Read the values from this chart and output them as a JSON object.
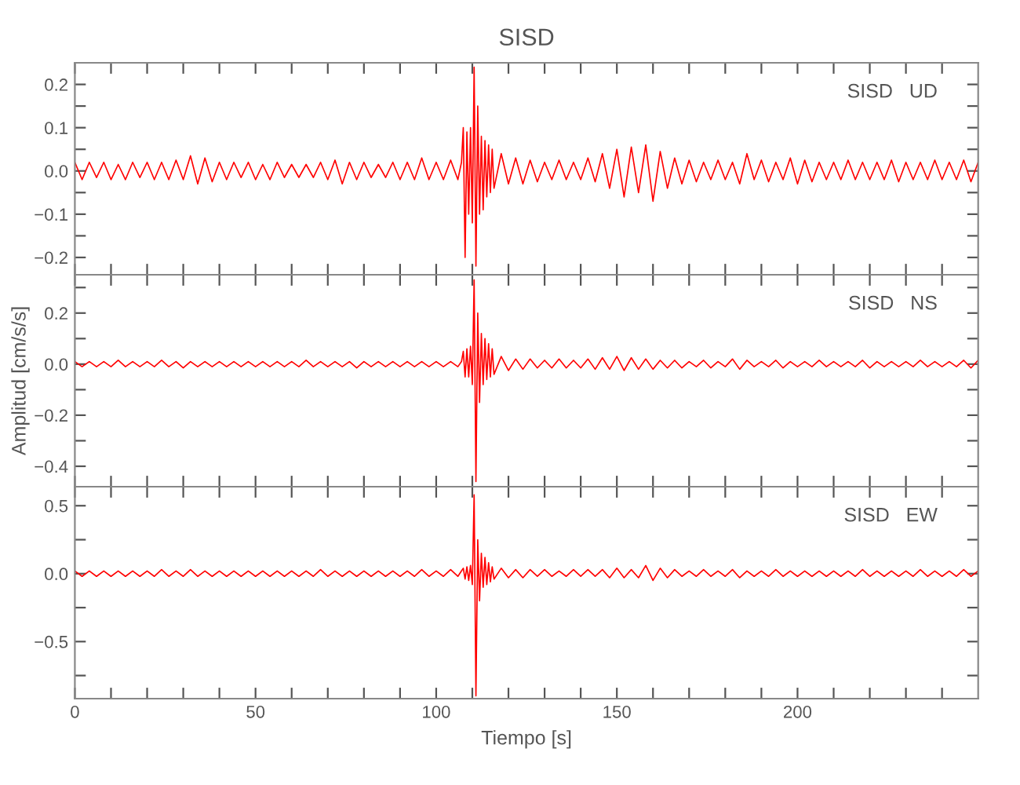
{
  "chart_data": [
    {
      "type": "line",
      "title": "SISD",
      "annotations": [
        "SISD   UD"
      ],
      "tick_labels": "y",
      "xlim": [
        0,
        250
      ],
      "xticks": [
        0,
        {
          "value": 10,
          "label": null
        },
        {
          "value": 20,
          "label": null
        },
        {
          "value": 30,
          "label": null
        },
        {
          "value": 40,
          "label": null
        },
        50,
        {
          "value": 60,
          "label": null
        },
        {
          "value": 70,
          "label": null
        },
        {
          "value": 80,
          "label": null
        },
        {
          "value": 90,
          "label": null
        },
        100,
        {
          "value": 110,
          "label": null
        },
        {
          "value": 120,
          "label": null
        },
        {
          "value": 130,
          "label": null
        },
        {
          "value": 140,
          "label": null
        },
        150,
        {
          "value": 160,
          "label": null
        },
        {
          "value": 170,
          "label": null
        },
        {
          "value": 180,
          "label": null
        },
        {
          "value": 190,
          "label": null
        },
        200,
        {
          "value": 210,
          "label": null
        },
        {
          "value": 220,
          "label": null
        },
        {
          "value": 230,
          "label": null
        },
        {
          "value": 240,
          "label": null
        }
      ],
      "ylim": [
        -0.24,
        0.25
      ],
      "yticks": [
        {
          "value": -0.2,
          "label": "−0.2"
        },
        {
          "value": -0.15,
          "label": null
        },
        {
          "value": -0.1,
          "label": "−0.1"
        },
        {
          "value": -0.05,
          "label": null
        },
        {
          "value": 0,
          "label": "0.0"
        },
        {
          "value": 0.05,
          "label": null
        },
        0.1,
        {
          "value": 0.15,
          "label": null
        },
        0.2
      ],
      "x": [
        0,
        2,
        4,
        6,
        8,
        10,
        12,
        14,
        16,
        18,
        20,
        22,
        24,
        26,
        28,
        30,
        32,
        34,
        36,
        38,
        40,
        42,
        44,
        46,
        48,
        50,
        52,
        54,
        56,
        58,
        60,
        62,
        64,
        66,
        68,
        70,
        72,
        74,
        76,
        78,
        80,
        82,
        84,
        86,
        88,
        90,
        92,
        94,
        96,
        98,
        100,
        102,
        104,
        106,
        107,
        107.5,
        108,
        108.5,
        109,
        109.5,
        110,
        110.5,
        111,
        111.5,
        112,
        112.5,
        113,
        113.5,
        114,
        114.5,
        115,
        115.5,
        116,
        118,
        120,
        122,
        124,
        126,
        128,
        130,
        132,
        134,
        136,
        138,
        140,
        142,
        144,
        146,
        148,
        150,
        152,
        154,
        156,
        158,
        160,
        162,
        164,
        166,
        168,
        170,
        172,
        174,
        176,
        178,
        180,
        182,
        184,
        186,
        188,
        190,
        192,
        194,
        196,
        198,
        200,
        202,
        204,
        206,
        208,
        210,
        212,
        214,
        216,
        218,
        220,
        222,
        224,
        226,
        228,
        230,
        232,
        234,
        236,
        238,
        240,
        242,
        244,
        246,
        248,
        250
      ],
      "series": [
        {
          "color": "#ff0000",
          "values": [
            0.02,
            -0.02,
            0.02,
            -0.015,
            0.02,
            -0.02,
            0.015,
            -0.02,
            0.02,
            -0.015,
            0.02,
            -0.02,
            0.02,
            -0.02,
            0.025,
            -0.02,
            0.035,
            -0.03,
            0.03,
            -0.025,
            0.02,
            -0.02,
            0.02,
            -0.015,
            0.02,
            -0.02,
            0.015,
            -0.02,
            0.02,
            -0.015,
            0.015,
            -0.015,
            0.015,
            -0.015,
            0.02,
            -0.02,
            0.025,
            -0.03,
            0.02,
            -0.02,
            0.02,
            -0.015,
            0.015,
            -0.015,
            0.02,
            -0.02,
            0.02,
            -0.02,
            0.03,
            -0.02,
            0.02,
            -0.02,
            0.025,
            -0.02,
            0.02,
            0.1,
            -0.2,
            0.09,
            -0.1,
            0.1,
            -0.12,
            0.24,
            -0.22,
            0.15,
            -0.1,
            0.08,
            -0.09,
            0.07,
            -0.06,
            0.06,
            -0.05,
            0.05,
            -0.04,
            0.04,
            -0.03,
            0.03,
            -0.03,
            0.025,
            -0.025,
            0.02,
            -0.02,
            0.025,
            -0.02,
            0.02,
            -0.02,
            0.03,
            -0.025,
            0.04,
            -0.04,
            0.05,
            -0.06,
            0.055,
            -0.05,
            0.06,
            -0.07,
            0.045,
            -0.04,
            0.03,
            -0.03,
            0.025,
            -0.025,
            0.02,
            -0.02,
            0.025,
            -0.02,
            0.02,
            -0.03,
            0.04,
            -0.02,
            0.025,
            -0.025,
            0.02,
            -0.02,
            0.03,
            -0.03,
            0.025,
            -0.025,
            0.02,
            -0.02,
            0.02,
            -0.02,
            0.025,
            -0.02,
            0.02,
            -0.02,
            0.02,
            -0.02,
            0.025,
            -0.025,
            0.02,
            -0.02,
            0.02,
            -0.02,
            0.025,
            -0.02,
            0.02,
            -0.02,
            0.025,
            -0.025,
            0.02
          ]
        }
      ]
    },
    {
      "type": "line",
      "ylabel": "Amplitud [cm/s/s]",
      "annotations": [
        "SISD   NS"
      ],
      "tick_labels": "y",
      "xlim": [
        0,
        250
      ],
      "xticks": [
        0,
        {
          "value": 10,
          "label": null
        },
        {
          "value": 20,
          "label": null
        },
        {
          "value": 30,
          "label": null
        },
        {
          "value": 40,
          "label": null
        },
        50,
        {
          "value": 60,
          "label": null
        },
        {
          "value": 70,
          "label": null
        },
        {
          "value": 80,
          "label": null
        },
        {
          "value": 90,
          "label": null
        },
        100,
        {
          "value": 110,
          "label": null
        },
        {
          "value": 120,
          "label": null
        },
        {
          "value": 130,
          "label": null
        },
        {
          "value": 140,
          "label": null
        },
        150,
        {
          "value": 160,
          "label": null
        },
        {
          "value": 170,
          "label": null
        },
        {
          "value": 180,
          "label": null
        },
        {
          "value": 190,
          "label": null
        },
        200,
        {
          "value": 210,
          "label": null
        },
        {
          "value": 220,
          "label": null
        },
        {
          "value": 230,
          "label": null
        },
        {
          "value": 240,
          "label": null
        }
      ],
      "ylim": [
        -0.48,
        0.35
      ],
      "yticks": [
        {
          "value": -0.4,
          "label": "−0.4"
        },
        {
          "value": -0.3,
          "label": null
        },
        {
          "value": -0.2,
          "label": "−0.2"
        },
        {
          "value": -0.1,
          "label": null
        },
        {
          "value": 0,
          "label": "0.0"
        },
        {
          "value": 0.1,
          "label": null
        },
        0.2,
        {
          "value": 0.3,
          "label": null
        }
      ],
      "x": [
        0,
        2,
        4,
        6,
        8,
        10,
        12,
        14,
        16,
        18,
        20,
        22,
        24,
        26,
        28,
        30,
        32,
        34,
        36,
        38,
        40,
        42,
        44,
        46,
        48,
        50,
        52,
        54,
        56,
        58,
        60,
        62,
        64,
        66,
        68,
        70,
        72,
        74,
        76,
        78,
        80,
        82,
        84,
        86,
        88,
        90,
        92,
        94,
        96,
        98,
        100,
        102,
        104,
        106,
        107,
        107.5,
        108,
        108.5,
        109,
        109.5,
        110,
        110.5,
        111,
        111.5,
        112,
        112.5,
        113,
        113.5,
        114,
        114.5,
        115,
        115.5,
        116,
        118,
        120,
        122,
        124,
        126,
        128,
        130,
        132,
        134,
        136,
        138,
        140,
        142,
        144,
        146,
        148,
        150,
        152,
        154,
        156,
        158,
        160,
        162,
        164,
        166,
        168,
        170,
        172,
        174,
        176,
        178,
        180,
        182,
        184,
        186,
        188,
        190,
        192,
        194,
        196,
        198,
        200,
        202,
        204,
        206,
        208,
        210,
        212,
        214,
        216,
        218,
        220,
        222,
        224,
        226,
        228,
        230,
        232,
        234,
        236,
        238,
        240,
        242,
        244,
        246,
        248,
        250
      ],
      "series": [
        {
          "color": "#ff0000",
          "values": [
            0.01,
            -0.01,
            0.01,
            -0.01,
            0.01,
            -0.01,
            0.015,
            -0.01,
            0.01,
            -0.01,
            0.01,
            -0.01,
            0.015,
            -0.01,
            0.01,
            -0.015,
            0.01,
            -0.01,
            0.01,
            -0.01,
            0.01,
            -0.01,
            0.01,
            -0.01,
            0.01,
            -0.01,
            0.01,
            -0.01,
            0.01,
            -0.01,
            0.01,
            -0.01,
            0.015,
            -0.01,
            0.01,
            -0.01,
            0.01,
            -0.01,
            0.01,
            -0.015,
            0.01,
            -0.01,
            0.01,
            -0.01,
            0.01,
            -0.01,
            0.01,
            -0.01,
            0.01,
            -0.01,
            0.01,
            -0.01,
            0.01,
            -0.01,
            0.01,
            0.05,
            -0.05,
            0.06,
            -0.05,
            0.07,
            -0.08,
            0.33,
            -0.46,
            0.2,
            -0.15,
            0.12,
            -0.08,
            0.1,
            -0.06,
            0.08,
            -0.05,
            0.06,
            -0.04,
            0.03,
            -0.025,
            0.02,
            -0.02,
            0.02,
            -0.015,
            0.015,
            -0.015,
            0.02,
            -0.015,
            0.015,
            -0.015,
            0.02,
            -0.02,
            0.025,
            -0.02,
            0.03,
            -0.025,
            0.025,
            -0.02,
            0.02,
            -0.02,
            0.015,
            -0.015,
            0.015,
            -0.015,
            0.01,
            -0.01,
            0.015,
            -0.015,
            0.01,
            -0.01,
            0.02,
            -0.02,
            0.015,
            -0.01,
            0.01,
            -0.01,
            0.015,
            -0.015,
            0.01,
            -0.01,
            0.01,
            -0.01,
            0.015,
            -0.01,
            0.01,
            -0.01,
            0.01,
            -0.01,
            0.015,
            -0.015,
            0.01,
            -0.01,
            0.01,
            -0.01,
            0.01,
            -0.01,
            0.015,
            -0.01,
            0.01,
            -0.01,
            0.01,
            -0.01,
            0.015,
            -0.015,
            0.015
          ]
        }
      ]
    },
    {
      "type": "line",
      "xlabel": "Tiempo [s]",
      "annotations": [
        "SISD   EW"
      ],
      "xlim": [
        0,
        250
      ],
      "xticks": [
        0,
        {
          "value": 10,
          "label": null
        },
        {
          "value": 20,
          "label": null
        },
        {
          "value": 30,
          "label": null
        },
        {
          "value": 40,
          "label": null
        },
        50,
        {
          "value": 60,
          "label": null
        },
        {
          "value": 70,
          "label": null
        },
        {
          "value": 80,
          "label": null
        },
        {
          "value": 90,
          "label": null
        },
        100,
        {
          "value": 110,
          "label": null
        },
        {
          "value": 120,
          "label": null
        },
        {
          "value": 130,
          "label": null
        },
        {
          "value": 140,
          "label": null
        },
        150,
        {
          "value": 160,
          "label": null
        },
        {
          "value": 170,
          "label": null
        },
        {
          "value": 180,
          "label": null
        },
        {
          "value": 190,
          "label": null
        },
        200,
        {
          "value": 210,
          "label": null
        },
        {
          "value": 220,
          "label": null
        },
        {
          "value": 230,
          "label": null
        },
        {
          "value": 240,
          "label": null
        }
      ],
      "ylim": [
        -0.92,
        0.64
      ],
      "yticks": [
        {
          "value": -0.75,
          "label": null
        },
        {
          "value": -0.5,
          "label": "−0.5"
        },
        {
          "value": -0.25,
          "label": null
        },
        {
          "value": 0,
          "label": "0.0"
        },
        {
          "value": 0.25,
          "label": null
        },
        0.5
      ],
      "x": [
        0,
        2,
        4,
        6,
        8,
        10,
        12,
        14,
        16,
        18,
        20,
        22,
        24,
        26,
        28,
        30,
        32,
        34,
        36,
        38,
        40,
        42,
        44,
        46,
        48,
        50,
        52,
        54,
        56,
        58,
        60,
        62,
        64,
        66,
        68,
        70,
        72,
        74,
        76,
        78,
        80,
        82,
        84,
        86,
        88,
        90,
        92,
        94,
        96,
        98,
        100,
        102,
        104,
        106,
        107,
        107.5,
        108,
        108.5,
        109,
        109.5,
        110,
        110.5,
        111,
        111.5,
        112,
        112.5,
        113,
        113.5,
        114,
        114.5,
        115,
        115.5,
        116,
        118,
        120,
        122,
        124,
        126,
        128,
        130,
        132,
        134,
        136,
        138,
        140,
        142,
        144,
        146,
        148,
        150,
        152,
        154,
        156,
        158,
        160,
        162,
        164,
        166,
        168,
        170,
        172,
        174,
        176,
        178,
        180,
        182,
        184,
        186,
        188,
        190,
        192,
        194,
        196,
        198,
        200,
        202,
        204,
        206,
        208,
        210,
        212,
        214,
        216,
        218,
        220,
        222,
        224,
        226,
        228,
        230,
        232,
        234,
        236,
        238,
        240,
        242,
        244,
        246,
        248,
        250
      ],
      "series": [
        {
          "color": "#ff0000",
          "values": [
            0.02,
            -0.02,
            0.02,
            -0.02,
            0.02,
            -0.02,
            0.02,
            -0.02,
            0.02,
            -0.02,
            0.02,
            -0.02,
            0.03,
            -0.02,
            0.02,
            -0.02,
            0.03,
            -0.02,
            0.02,
            -0.02,
            0.02,
            -0.02,
            0.02,
            -0.02,
            0.02,
            -0.02,
            0.02,
            -0.02,
            0.02,
            -0.02,
            0.02,
            -0.02,
            0.02,
            -0.02,
            0.03,
            -0.02,
            0.02,
            -0.02,
            0.02,
            -0.02,
            0.02,
            -0.02,
            0.02,
            -0.02,
            0.02,
            -0.02,
            0.02,
            -0.02,
            0.03,
            -0.02,
            0.02,
            -0.02,
            0.03,
            -0.02,
            0.02,
            0.04,
            -0.04,
            0.05,
            -0.05,
            0.06,
            -0.08,
            0.58,
            -0.9,
            0.25,
            -0.2,
            0.15,
            -0.1,
            0.12,
            -0.08,
            0.08,
            -0.06,
            0.05,
            -0.04,
            0.04,
            -0.03,
            0.03,
            -0.03,
            0.03,
            -0.02,
            0.03,
            -0.02,
            0.02,
            -0.02,
            0.03,
            -0.02,
            0.03,
            -0.02,
            0.03,
            -0.03,
            0.04,
            -0.03,
            0.03,
            -0.03,
            0.06,
            -0.05,
            0.04,
            -0.03,
            0.03,
            -0.02,
            0.02,
            -0.02,
            0.03,
            -0.02,
            0.02,
            -0.02,
            0.03,
            -0.03,
            0.02,
            -0.02,
            0.02,
            -0.02,
            0.03,
            -0.02,
            0.02,
            -0.02,
            0.02,
            -0.02,
            0.02,
            -0.02,
            0.02,
            -0.02,
            0.02,
            -0.02,
            0.03,
            -0.02,
            0.02,
            -0.02,
            0.02,
            -0.02,
            0.02,
            -0.02,
            0.03,
            -0.02,
            0.02,
            -0.02,
            0.02,
            -0.02,
            0.03,
            -0.02,
            0.02
          ]
        }
      ]
    }
  ]
}
